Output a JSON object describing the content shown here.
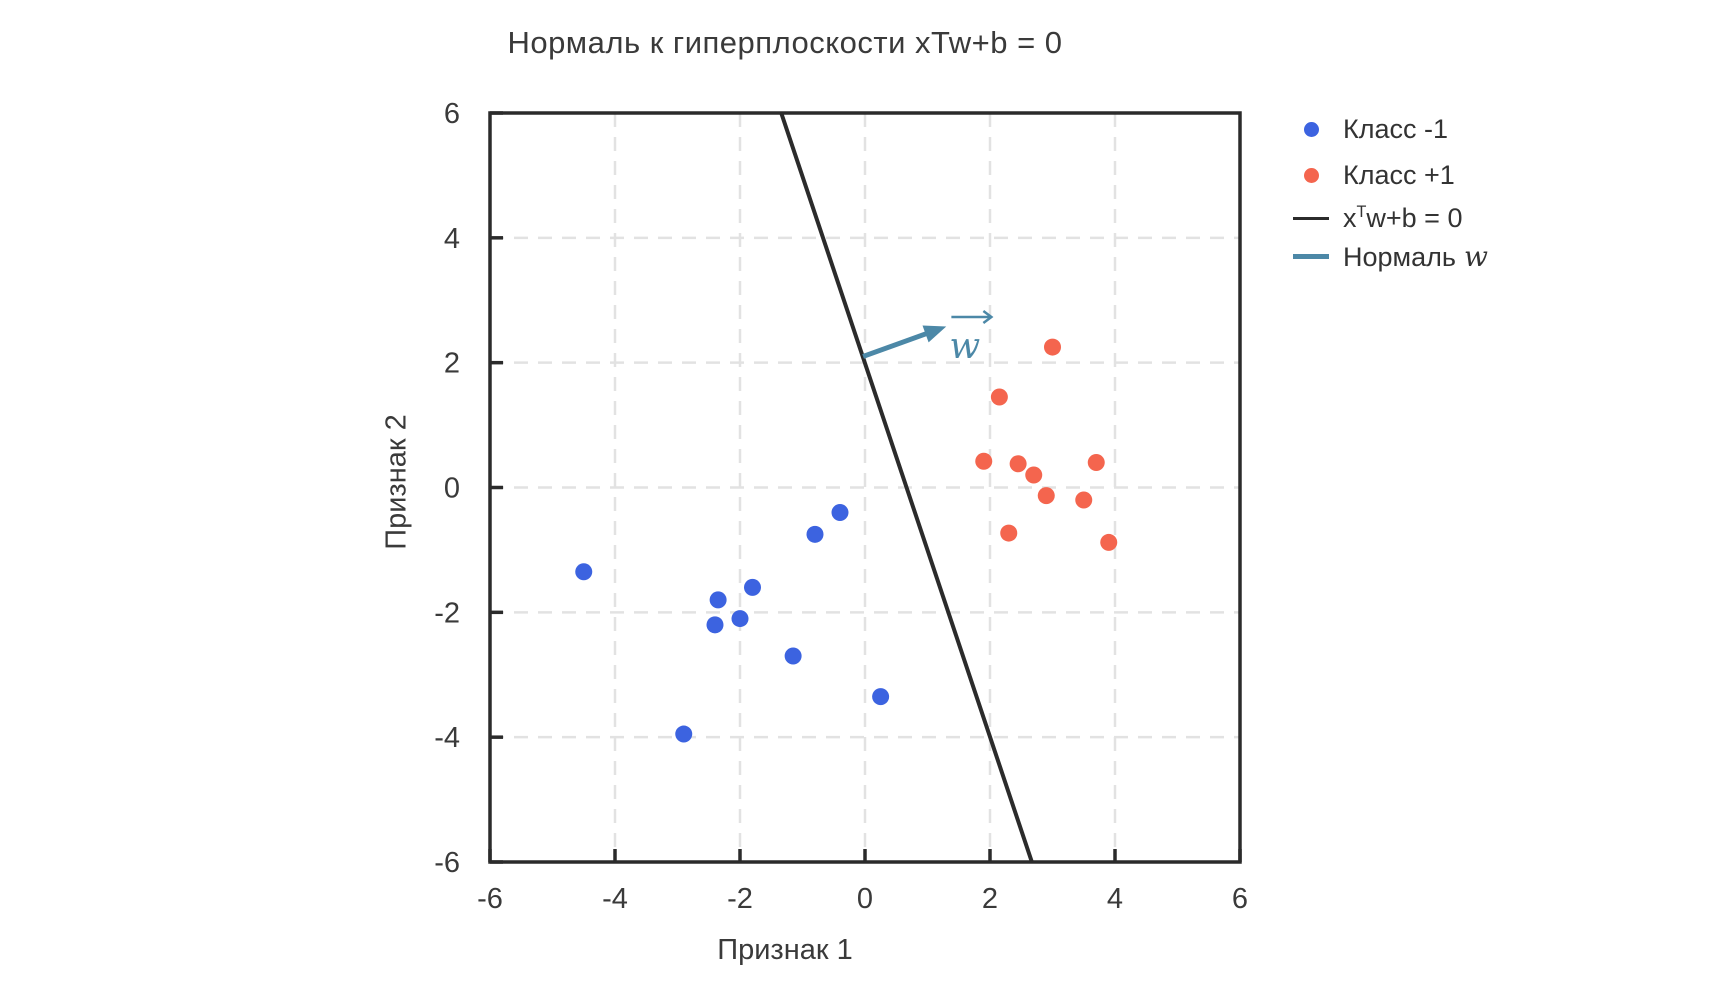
{
  "title": "Нормаль к гиперплоскости xTw+b = 0",
  "axes": {
    "xlabel": "Признак 1",
    "ylabel": "Признак 2"
  },
  "legend": {
    "class_neg": {
      "label": "Класс -1",
      "color": "#3c63e0"
    },
    "class_pos": {
      "label": "Класс +1",
      "color": "#f4654e"
    },
    "line": {
      "pre": "x",
      "sup": "T",
      "post": "w+b = 0",
      "color": "#2b2b2b"
    },
    "normal": {
      "text": "Нормаль",
      "math": "w",
      "color": "#4c88a7"
    }
  },
  "chart_data": {
    "type": "scatter",
    "title": "Нормаль к гиперплоскости xTw+b = 0",
    "xlabel": "Признак 1",
    "ylabel": "Признак 2",
    "xlim": [
      -6,
      6
    ],
    "ylim": [
      -6,
      6
    ],
    "xticks": [
      -6,
      -4,
      -2,
      0,
      2,
      4,
      6
    ],
    "yticks": [
      -6,
      -4,
      -2,
      0,
      2,
      4,
      6
    ],
    "grid": true,
    "legend_position": "outside-right-top",
    "series": [
      {
        "name": "Класс -1",
        "color": "#3c63e0",
        "marker": "circle",
        "points": [
          [
            -4.5,
            -1.35
          ],
          [
            -2.9,
            -3.95
          ],
          [
            -2.4,
            -2.2
          ],
          [
            -2.35,
            -1.8
          ],
          [
            -2.0,
            -2.1
          ],
          [
            -1.8,
            -1.6
          ],
          [
            -1.15,
            -2.7
          ],
          [
            -0.8,
            -0.75
          ],
          [
            -0.4,
            -0.4
          ],
          [
            0.25,
            -3.35
          ]
        ]
      },
      {
        "name": "Класс +1",
        "color": "#f4654e",
        "marker": "circle",
        "points": [
          [
            1.9,
            0.42
          ],
          [
            2.15,
            1.45
          ],
          [
            2.3,
            -0.73
          ],
          [
            2.45,
            0.38
          ],
          [
            2.7,
            0.2
          ],
          [
            2.9,
            -0.13
          ],
          [
            3.0,
            2.25
          ],
          [
            3.5,
            -0.2
          ],
          [
            3.7,
            0.4
          ],
          [
            3.9,
            -0.88
          ]
        ]
      }
    ],
    "hyperplane_line": {
      "label": "xᵀw+b = 0",
      "color": "#2b2b2b",
      "from": [
        -1.34,
        6
      ],
      "to": [
        2.67,
        -6
      ]
    },
    "normal_arrow": {
      "label": "Нормаль w",
      "color": "#4c88a7",
      "from": [
        -0.03,
        2.1
      ],
      "to": [
        1.3,
        2.58
      ],
      "annotation": "w",
      "annotation_xy": [
        1.35,
        2.3
      ]
    }
  }
}
